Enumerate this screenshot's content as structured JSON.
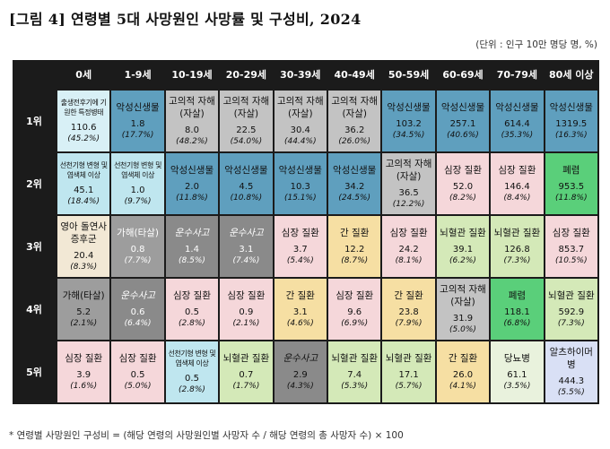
{
  "title": "[그림 4] 연령별 5대 사망원인 사망률 및 구성비, 2024",
  "unit": "(단위 : 인구 10만 명당 명, %)",
  "footnote": "* 연령별 사망원인 구성비 = (해당 연령의 사망원인별 사망자 수 / 해당 연령의 총 사망자 수) × 100",
  "colors": {
    "cancer": "#5f9fbe",
    "suicide": "#c3c3c3",
    "heart": "#f5d7da",
    "cerebro": "#d4e9b8",
    "accident": "#8a8a8a",
    "fall": "#9d9d9d",
    "liver": "#f6dfa3",
    "pneumonia": "#5acf7a",
    "perinatal": "#d8f0f6",
    "congenital": "#bfe6ef",
    "sids": "#f2e8d5",
    "diabetes": "#e9f2dd",
    "alzheimer": "#d9e0f5"
  },
  "columns": [
    "0세",
    "1-9세",
    "10-19세",
    "20-29세",
    "30-39세",
    "40-49세",
    "50-59세",
    "60-69세",
    "70-79세",
    "80세 이상"
  ],
  "rows": [
    {
      "rank": "1위",
      "cells": [
        {
          "name": "출생전후기에 기원한 특정병태",
          "value": "110.6",
          "share": "(45.2%)",
          "type": "perinatal",
          "small": true
        },
        {
          "name": "악성신생물",
          "value": "1.8",
          "share": "(17.7%)",
          "type": "cancer"
        },
        {
          "name": "고의적 자해(자살)",
          "value": "8.0",
          "share": "(48.2%)",
          "type": "suicide"
        },
        {
          "name": "고의적 자해(자살)",
          "value": "22.5",
          "share": "(54.0%)",
          "type": "suicide"
        },
        {
          "name": "고의적 자해(자살)",
          "value": "30.4",
          "share": "(44.4%)",
          "type": "suicide"
        },
        {
          "name": "고의적 자해(자살)",
          "value": "36.2",
          "share": "(26.0%)",
          "type": "suicide"
        },
        {
          "name": "악성신생물",
          "value": "103.2",
          "share": "(34.5%)",
          "type": "cancer"
        },
        {
          "name": "악성신생물",
          "value": "257.1",
          "share": "(40.6%)",
          "type": "cancer"
        },
        {
          "name": "악성신생물",
          "value": "614.4",
          "share": "(35.3%)",
          "type": "cancer"
        },
        {
          "name": "악성신생물",
          "value": "1319.5",
          "share": "(16.3%)",
          "type": "cancer"
        }
      ]
    },
    {
      "rank": "2위",
      "cells": [
        {
          "name": "선천기형 변형 및 염색체 이상",
          "value": "45.1",
          "share": "(18.4%)",
          "type": "congenital",
          "small": true
        },
        {
          "name": "선천기형 변형 및 염색체 이상",
          "value": "1.0",
          "share": "(9.7%)",
          "type": "congenital",
          "small": true
        },
        {
          "name": "악성신생물",
          "value": "2.0",
          "share": "(11.8%)",
          "type": "cancer"
        },
        {
          "name": "악성신생물",
          "value": "4.5",
          "share": "(10.8%)",
          "type": "cancer"
        },
        {
          "name": "악성신생물",
          "value": "10.3",
          "share": "(15.1%)",
          "type": "cancer"
        },
        {
          "name": "악성신생물",
          "value": "34.2",
          "share": "(24.5%)",
          "type": "cancer"
        },
        {
          "name": "고의적 자해(자살)",
          "value": "36.5",
          "share": "(12.2%)",
          "type": "suicide"
        },
        {
          "name": "심장 질환",
          "value": "52.0",
          "share": "(8.2%)",
          "type": "heart"
        },
        {
          "name": "심장 질환",
          "value": "146.4",
          "share": "(8.4%)",
          "type": "heart"
        },
        {
          "name": "폐렴",
          "value": "953.5",
          "share": "(11.8%)",
          "type": "pneumonia"
        }
      ]
    },
    {
      "rank": "3위",
      "cells": [
        {
          "name": "영아 돌연사 증후군",
          "value": "20.4",
          "share": "(8.3%)",
          "type": "sids"
        },
        {
          "name": "가해(타살)",
          "value": "0.8",
          "share": "(7.7%)",
          "type": "fall",
          "white": true
        },
        {
          "name": "운수사고",
          "value": "1.4",
          "share": "(8.5%)",
          "type": "accident",
          "white": true,
          "italic": true
        },
        {
          "name": "운수사고",
          "value": "3.1",
          "share": "(7.4%)",
          "type": "accident",
          "white": true,
          "italic": true
        },
        {
          "name": "심장 질환",
          "value": "3.7",
          "share": "(5.4%)",
          "type": "heart"
        },
        {
          "name": "간 질환",
          "value": "12.2",
          "share": "(8.7%)",
          "type": "liver"
        },
        {
          "name": "심장 질환",
          "value": "24.2",
          "share": "(8.1%)",
          "type": "heart"
        },
        {
          "name": "뇌혈관 질환",
          "value": "39.1",
          "share": "(6.2%)",
          "type": "cerebro"
        },
        {
          "name": "뇌혈관 질환",
          "value": "126.8",
          "share": "(7.3%)",
          "type": "cerebro"
        },
        {
          "name": "심장 질환",
          "value": "853.7",
          "share": "(10.5%)",
          "type": "heart"
        }
      ]
    },
    {
      "rank": "4위",
      "cells": [
        {
          "name": "가해(타살)",
          "value": "5.2",
          "share": "(2.1%)",
          "type": "fall"
        },
        {
          "name": "운수사고",
          "value": "0.6",
          "share": "(6.4%)",
          "type": "accident",
          "white": true,
          "italic": true
        },
        {
          "name": "심장 질환",
          "value": "0.5",
          "share": "(2.8%)",
          "type": "heart"
        },
        {
          "name": "심장 질환",
          "value": "0.9",
          "share": "(2.1%)",
          "type": "heart"
        },
        {
          "name": "간 질환",
          "value": "3.1",
          "share": "(4.6%)",
          "type": "liver"
        },
        {
          "name": "심장 질환",
          "value": "9.6",
          "share": "(6.9%)",
          "type": "heart"
        },
        {
          "name": "간 질환",
          "value": "23.8",
          "share": "(7.9%)",
          "type": "liver"
        },
        {
          "name": "고의적 자해(자살)",
          "value": "31.9",
          "share": "(5.0%)",
          "type": "suicide"
        },
        {
          "name": "폐렴",
          "value": "118.1",
          "share": "(6.8%)",
          "type": "pneumonia"
        },
        {
          "name": "뇌혈관 질환",
          "value": "592.9",
          "share": "(7.3%)",
          "type": "cerebro"
        }
      ]
    },
    {
      "rank": "5위",
      "cells": [
        {
          "name": "심장 질환",
          "value": "3.9",
          "share": "(1.6%)",
          "type": "heart"
        },
        {
          "name": "심장 질환",
          "value": "0.5",
          "share": "(5.0%)",
          "type": "heart"
        },
        {
          "name": "선천기형 변형 및 염색체 이상",
          "value": "0.5",
          "share": "(2.8%)",
          "type": "congenital",
          "small": true
        },
        {
          "name": "뇌혈관 질환",
          "value": "0.7",
          "share": "(1.7%)",
          "type": "cerebro"
        },
        {
          "name": "운수사고",
          "value": "2.9",
          "share": "(4.3%)",
          "type": "accident",
          "italic": true
        },
        {
          "name": "뇌혈관 질환",
          "value": "7.4",
          "share": "(5.3%)",
          "type": "cerebro"
        },
        {
          "name": "뇌혈관 질환",
          "value": "17.1",
          "share": "(5.7%)",
          "type": "cerebro"
        },
        {
          "name": "간 질환",
          "value": "26.0",
          "share": "(4.1%)",
          "type": "liver"
        },
        {
          "name": "당뇨병",
          "value": "61.1",
          "share": "(3.5%)",
          "type": "diabetes"
        },
        {
          "name": "알츠하이머병",
          "value": "444.3",
          "share": "(5.5%)",
          "type": "alzheimer"
        }
      ]
    }
  ]
}
